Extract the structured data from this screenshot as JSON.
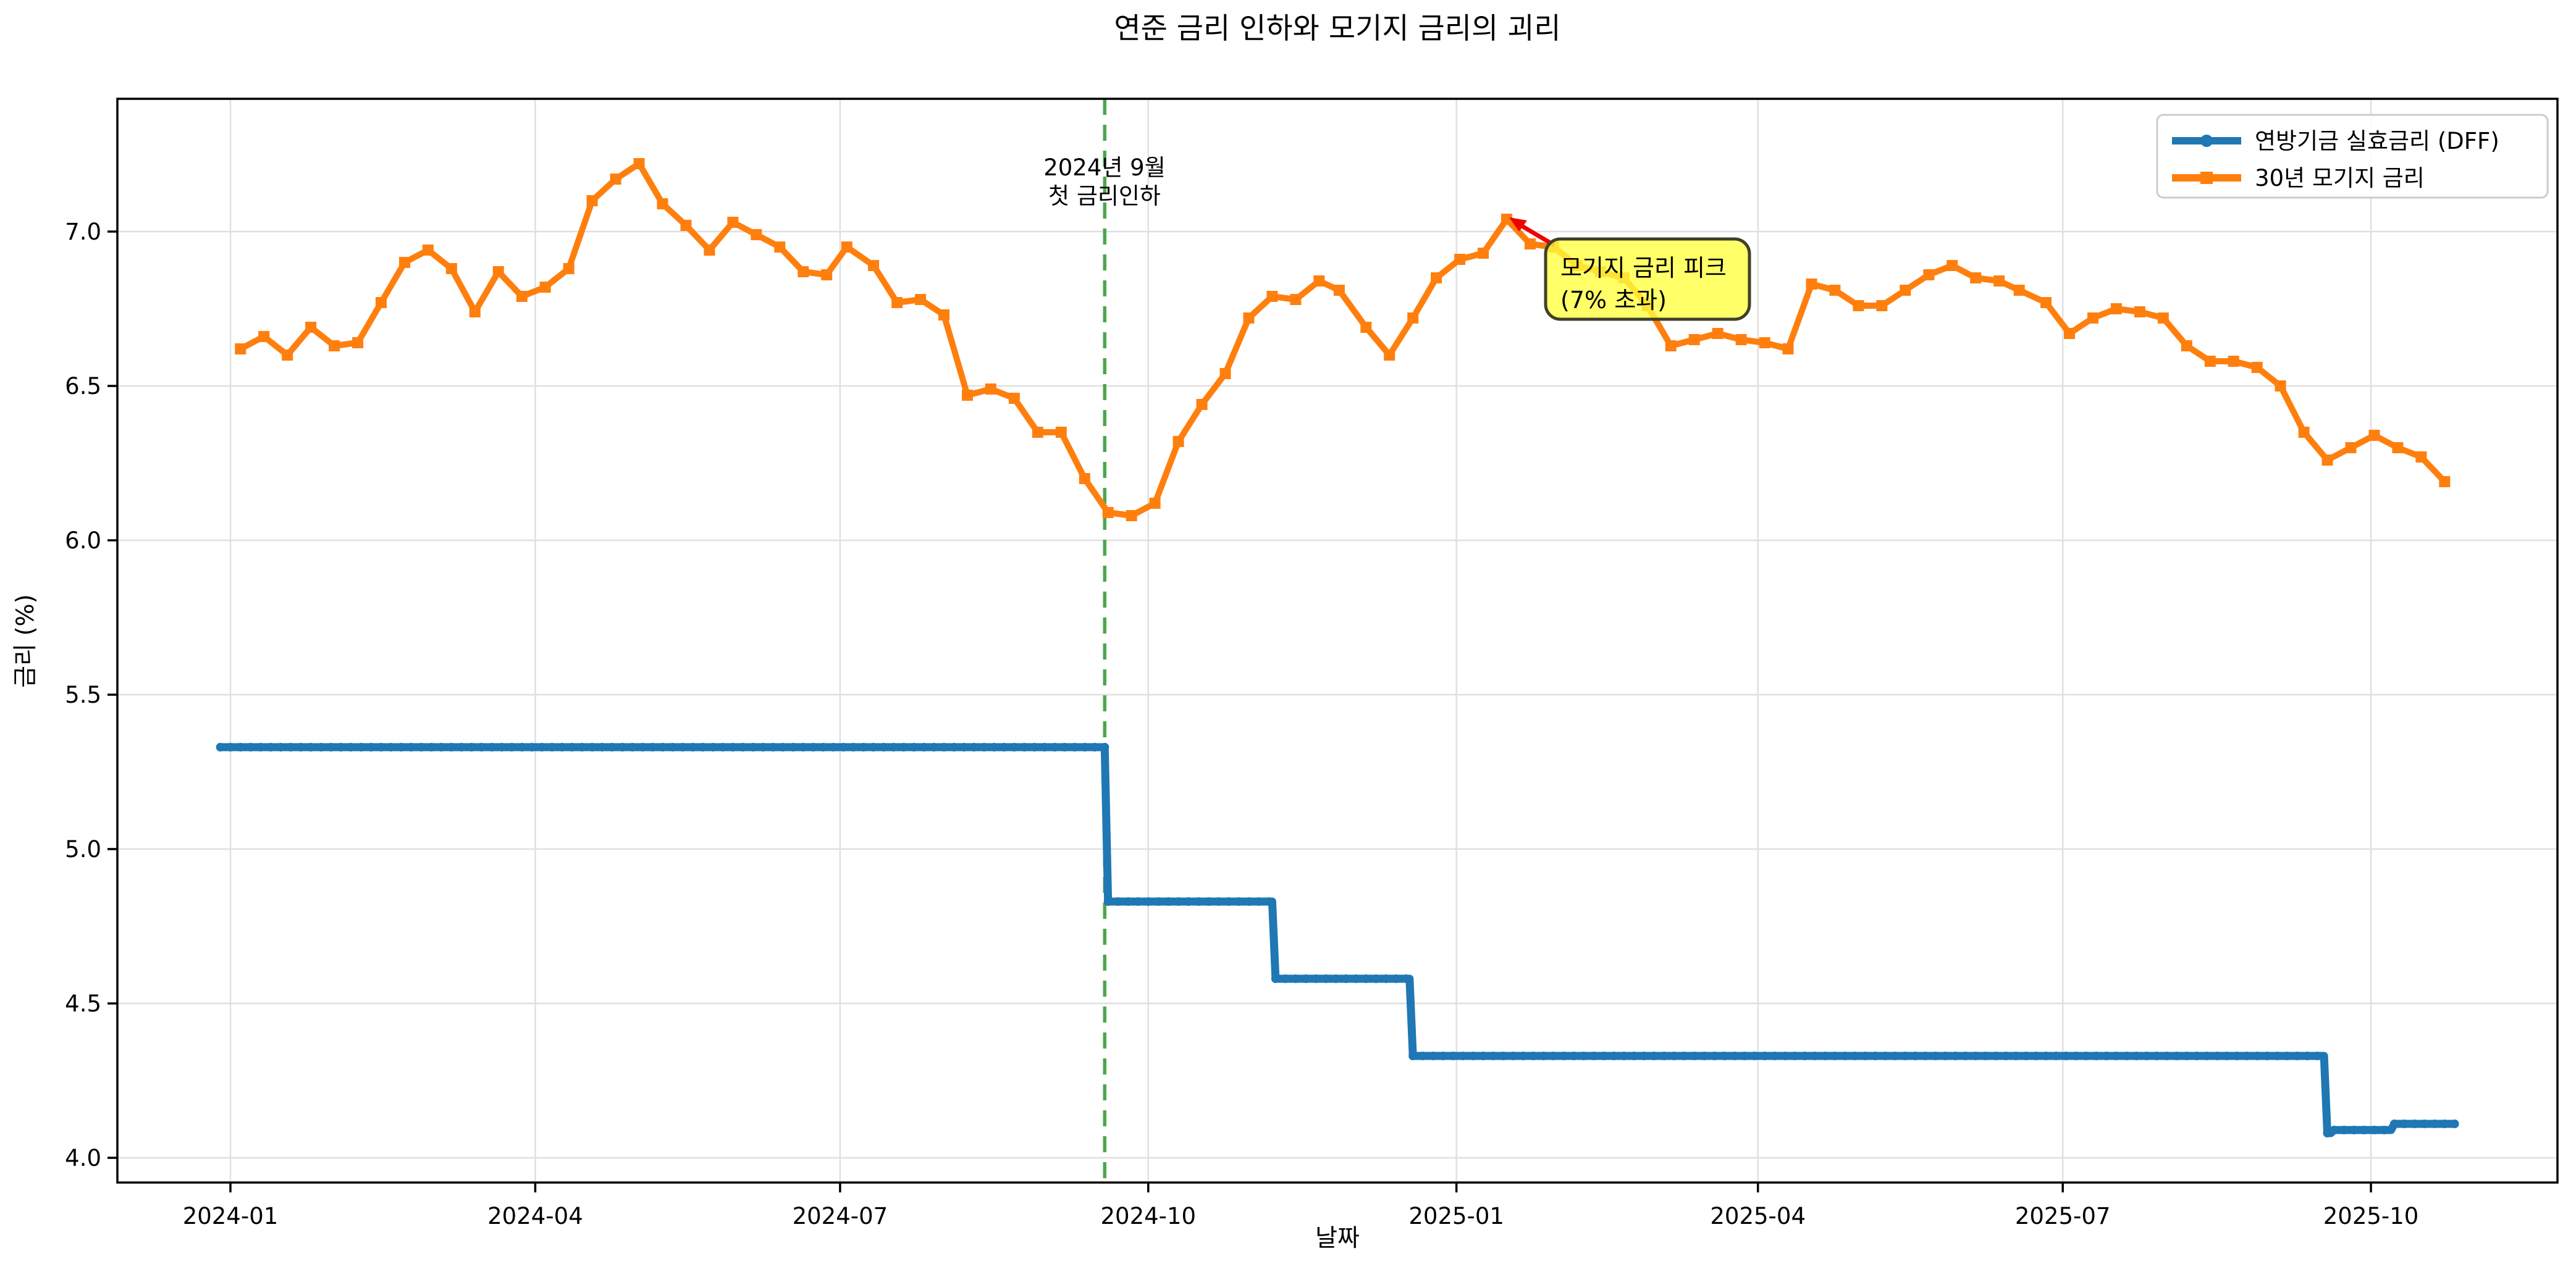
{
  "title": "연준 금리 인하와 모기지 금리의 괴리",
  "axes": {
    "x_label": "날짜",
    "y_label": "금리 (%)"
  },
  "annotations": {
    "first_rate_cut": {
      "date": "2024-09-18",
      "line1": "2024년 9월",
      "line2": "첫 금리인하",
      "line_color": "#4da64d",
      "text_color": "#0a800a"
    },
    "mortgage_peak": {
      "line1": "모기지 금리 피크",
      "line2": "(7% 초과)",
      "target_date": "2025-01-16",
      "target_value": 7.04,
      "box_fill": "#ffff3c",
      "box_border": "#40402a",
      "arrow_color": "#f10000"
    }
  },
  "chart_data": {
    "type": "line",
    "title": "연준 금리 인하와 모기지 금리의 괴리",
    "xlabel": "날짜",
    "ylabel": "금리 (%)",
    "grid": true,
    "legend_position": "upper right",
    "ylim": [
      3.92,
      7.43
    ],
    "xlim": [
      "2023-11-28",
      "2025-11-25"
    ],
    "x_ticks": [
      {
        "label": "2024-01",
        "date": "2024-01-01"
      },
      {
        "label": "2024-04",
        "date": "2024-04-01"
      },
      {
        "label": "2024-07",
        "date": "2024-07-01"
      },
      {
        "label": "2024-10",
        "date": "2024-10-01"
      },
      {
        "label": "2025-01",
        "date": "2025-01-01"
      },
      {
        "label": "2025-04",
        "date": "2025-04-01"
      },
      {
        "label": "2025-07",
        "date": "2025-07-01"
      },
      {
        "label": "2025-10",
        "date": "2025-10-01"
      }
    ],
    "y_ticks": [
      {
        "label": "4.0",
        "value": 4.0
      },
      {
        "label": "4.5",
        "value": 4.5
      },
      {
        "label": "5.0",
        "value": 5.0
      },
      {
        "label": "5.5",
        "value": 5.5
      },
      {
        "label": "6.0",
        "value": 6.0
      },
      {
        "label": "6.5",
        "value": 6.5
      },
      {
        "label": "7.0",
        "value": 7.0
      }
    ],
    "series": [
      {
        "name": "연방기금 실효금리 (DFF)",
        "color": "#1f77b4",
        "marker": "circle",
        "style": "step",
        "segments": [
          {
            "start": "2023-12-29",
            "end": "2024-09-18",
            "value": 5.33
          },
          {
            "start": "2024-09-19",
            "end": "2024-11-07",
            "value": 4.83
          },
          {
            "start": "2024-11-08",
            "end": "2024-12-18",
            "value": 4.58
          },
          {
            "start": "2024-12-19",
            "end": "2025-09-17",
            "value": 4.33
          },
          {
            "start": "2025-09-18",
            "end": "2025-09-19",
            "value": 4.08
          },
          {
            "start": "2025-09-20",
            "end": "2025-10-07",
            "value": 4.09
          },
          {
            "start": "2025-10-08",
            "end": "2025-10-26",
            "value": 4.11
          }
        ]
      },
      {
        "name": "30년 모기지 금리",
        "color": "#ff7f0e",
        "marker": "square",
        "style": "line",
        "points": [
          [
            "2024-01-04",
            6.62
          ],
          [
            "2024-01-11",
            6.66
          ],
          [
            "2024-01-18",
            6.6
          ],
          [
            "2024-01-25",
            6.69
          ],
          [
            "2024-02-01",
            6.63
          ],
          [
            "2024-02-08",
            6.64
          ],
          [
            "2024-02-15",
            6.77
          ],
          [
            "2024-02-22",
            6.9
          ],
          [
            "2024-02-29",
            6.94
          ],
          [
            "2024-03-07",
            6.88
          ],
          [
            "2024-03-14",
            6.74
          ],
          [
            "2024-03-21",
            6.87
          ],
          [
            "2024-03-28",
            6.79
          ],
          [
            "2024-04-04",
            6.82
          ],
          [
            "2024-04-11",
            6.88
          ],
          [
            "2024-04-18",
            7.1
          ],
          [
            "2024-04-25",
            7.17
          ],
          [
            "2024-05-02",
            7.22
          ],
          [
            "2024-05-09",
            7.09
          ],
          [
            "2024-05-16",
            7.02
          ],
          [
            "2024-05-23",
            6.94
          ],
          [
            "2024-05-30",
            7.03
          ],
          [
            "2024-06-06",
            6.99
          ],
          [
            "2024-06-13",
            6.95
          ],
          [
            "2024-06-20",
            6.87
          ],
          [
            "2024-06-27",
            6.86
          ],
          [
            "2024-07-03",
            6.95
          ],
          [
            "2024-07-11",
            6.89
          ],
          [
            "2024-07-18",
            6.77
          ],
          [
            "2024-07-25",
            6.78
          ],
          [
            "2024-08-01",
            6.73
          ],
          [
            "2024-08-08",
            6.47
          ],
          [
            "2024-08-15",
            6.49
          ],
          [
            "2024-08-22",
            6.46
          ],
          [
            "2024-08-29",
            6.35
          ],
          [
            "2024-09-05",
            6.35
          ],
          [
            "2024-09-12",
            6.2
          ],
          [
            "2024-09-19",
            6.09
          ],
          [
            "2024-09-26",
            6.08
          ],
          [
            "2024-10-03",
            6.12
          ],
          [
            "2024-10-10",
            6.32
          ],
          [
            "2024-10-17",
            6.44
          ],
          [
            "2024-10-24",
            6.54
          ],
          [
            "2024-10-31",
            6.72
          ],
          [
            "2024-11-07",
            6.79
          ],
          [
            "2024-11-14",
            6.78
          ],
          [
            "2024-11-21",
            6.84
          ],
          [
            "2024-11-27",
            6.81
          ],
          [
            "2024-12-05",
            6.69
          ],
          [
            "2024-12-12",
            6.6
          ],
          [
            "2024-12-19",
            6.72
          ],
          [
            "2024-12-26",
            6.85
          ],
          [
            "2025-01-02",
            6.91
          ],
          [
            "2025-01-09",
            6.93
          ],
          [
            "2025-01-16",
            7.04
          ],
          [
            "2025-01-23",
            6.96
          ],
          [
            "2025-01-30",
            6.95
          ],
          [
            "2025-02-06",
            6.89
          ],
          [
            "2025-02-13",
            6.87
          ],
          [
            "2025-02-20",
            6.85
          ],
          [
            "2025-02-27",
            6.76
          ],
          [
            "2025-03-06",
            6.63
          ],
          [
            "2025-03-13",
            6.65
          ],
          [
            "2025-03-20",
            6.67
          ],
          [
            "2025-03-27",
            6.65
          ],
          [
            "2025-04-03",
            6.64
          ],
          [
            "2025-04-10",
            6.62
          ],
          [
            "2025-04-17",
            6.83
          ],
          [
            "2025-04-24",
            6.81
          ],
          [
            "2025-05-01",
            6.76
          ],
          [
            "2025-05-08",
            6.76
          ],
          [
            "2025-05-15",
            6.81
          ],
          [
            "2025-05-22",
            6.86
          ],
          [
            "2025-05-29",
            6.89
          ],
          [
            "2025-06-05",
            6.85
          ],
          [
            "2025-06-12",
            6.84
          ],
          [
            "2025-06-18",
            6.81
          ],
          [
            "2025-06-26",
            6.77
          ],
          [
            "2025-07-03",
            6.67
          ],
          [
            "2025-07-10",
            6.72
          ],
          [
            "2025-07-17",
            6.75
          ],
          [
            "2025-07-24",
            6.74
          ],
          [
            "2025-07-31",
            6.72
          ],
          [
            "2025-08-07",
            6.63
          ],
          [
            "2025-08-14",
            6.58
          ],
          [
            "2025-08-21",
            6.58
          ],
          [
            "2025-08-28",
            6.56
          ],
          [
            "2025-09-04",
            6.5
          ],
          [
            "2025-09-11",
            6.35
          ],
          [
            "2025-09-18",
            6.26
          ],
          [
            "2025-09-25",
            6.3
          ],
          [
            "2025-10-02",
            6.34
          ],
          [
            "2025-10-09",
            6.3
          ],
          [
            "2025-10-16",
            6.27
          ],
          [
            "2025-10-23",
            6.19
          ]
        ]
      }
    ]
  }
}
